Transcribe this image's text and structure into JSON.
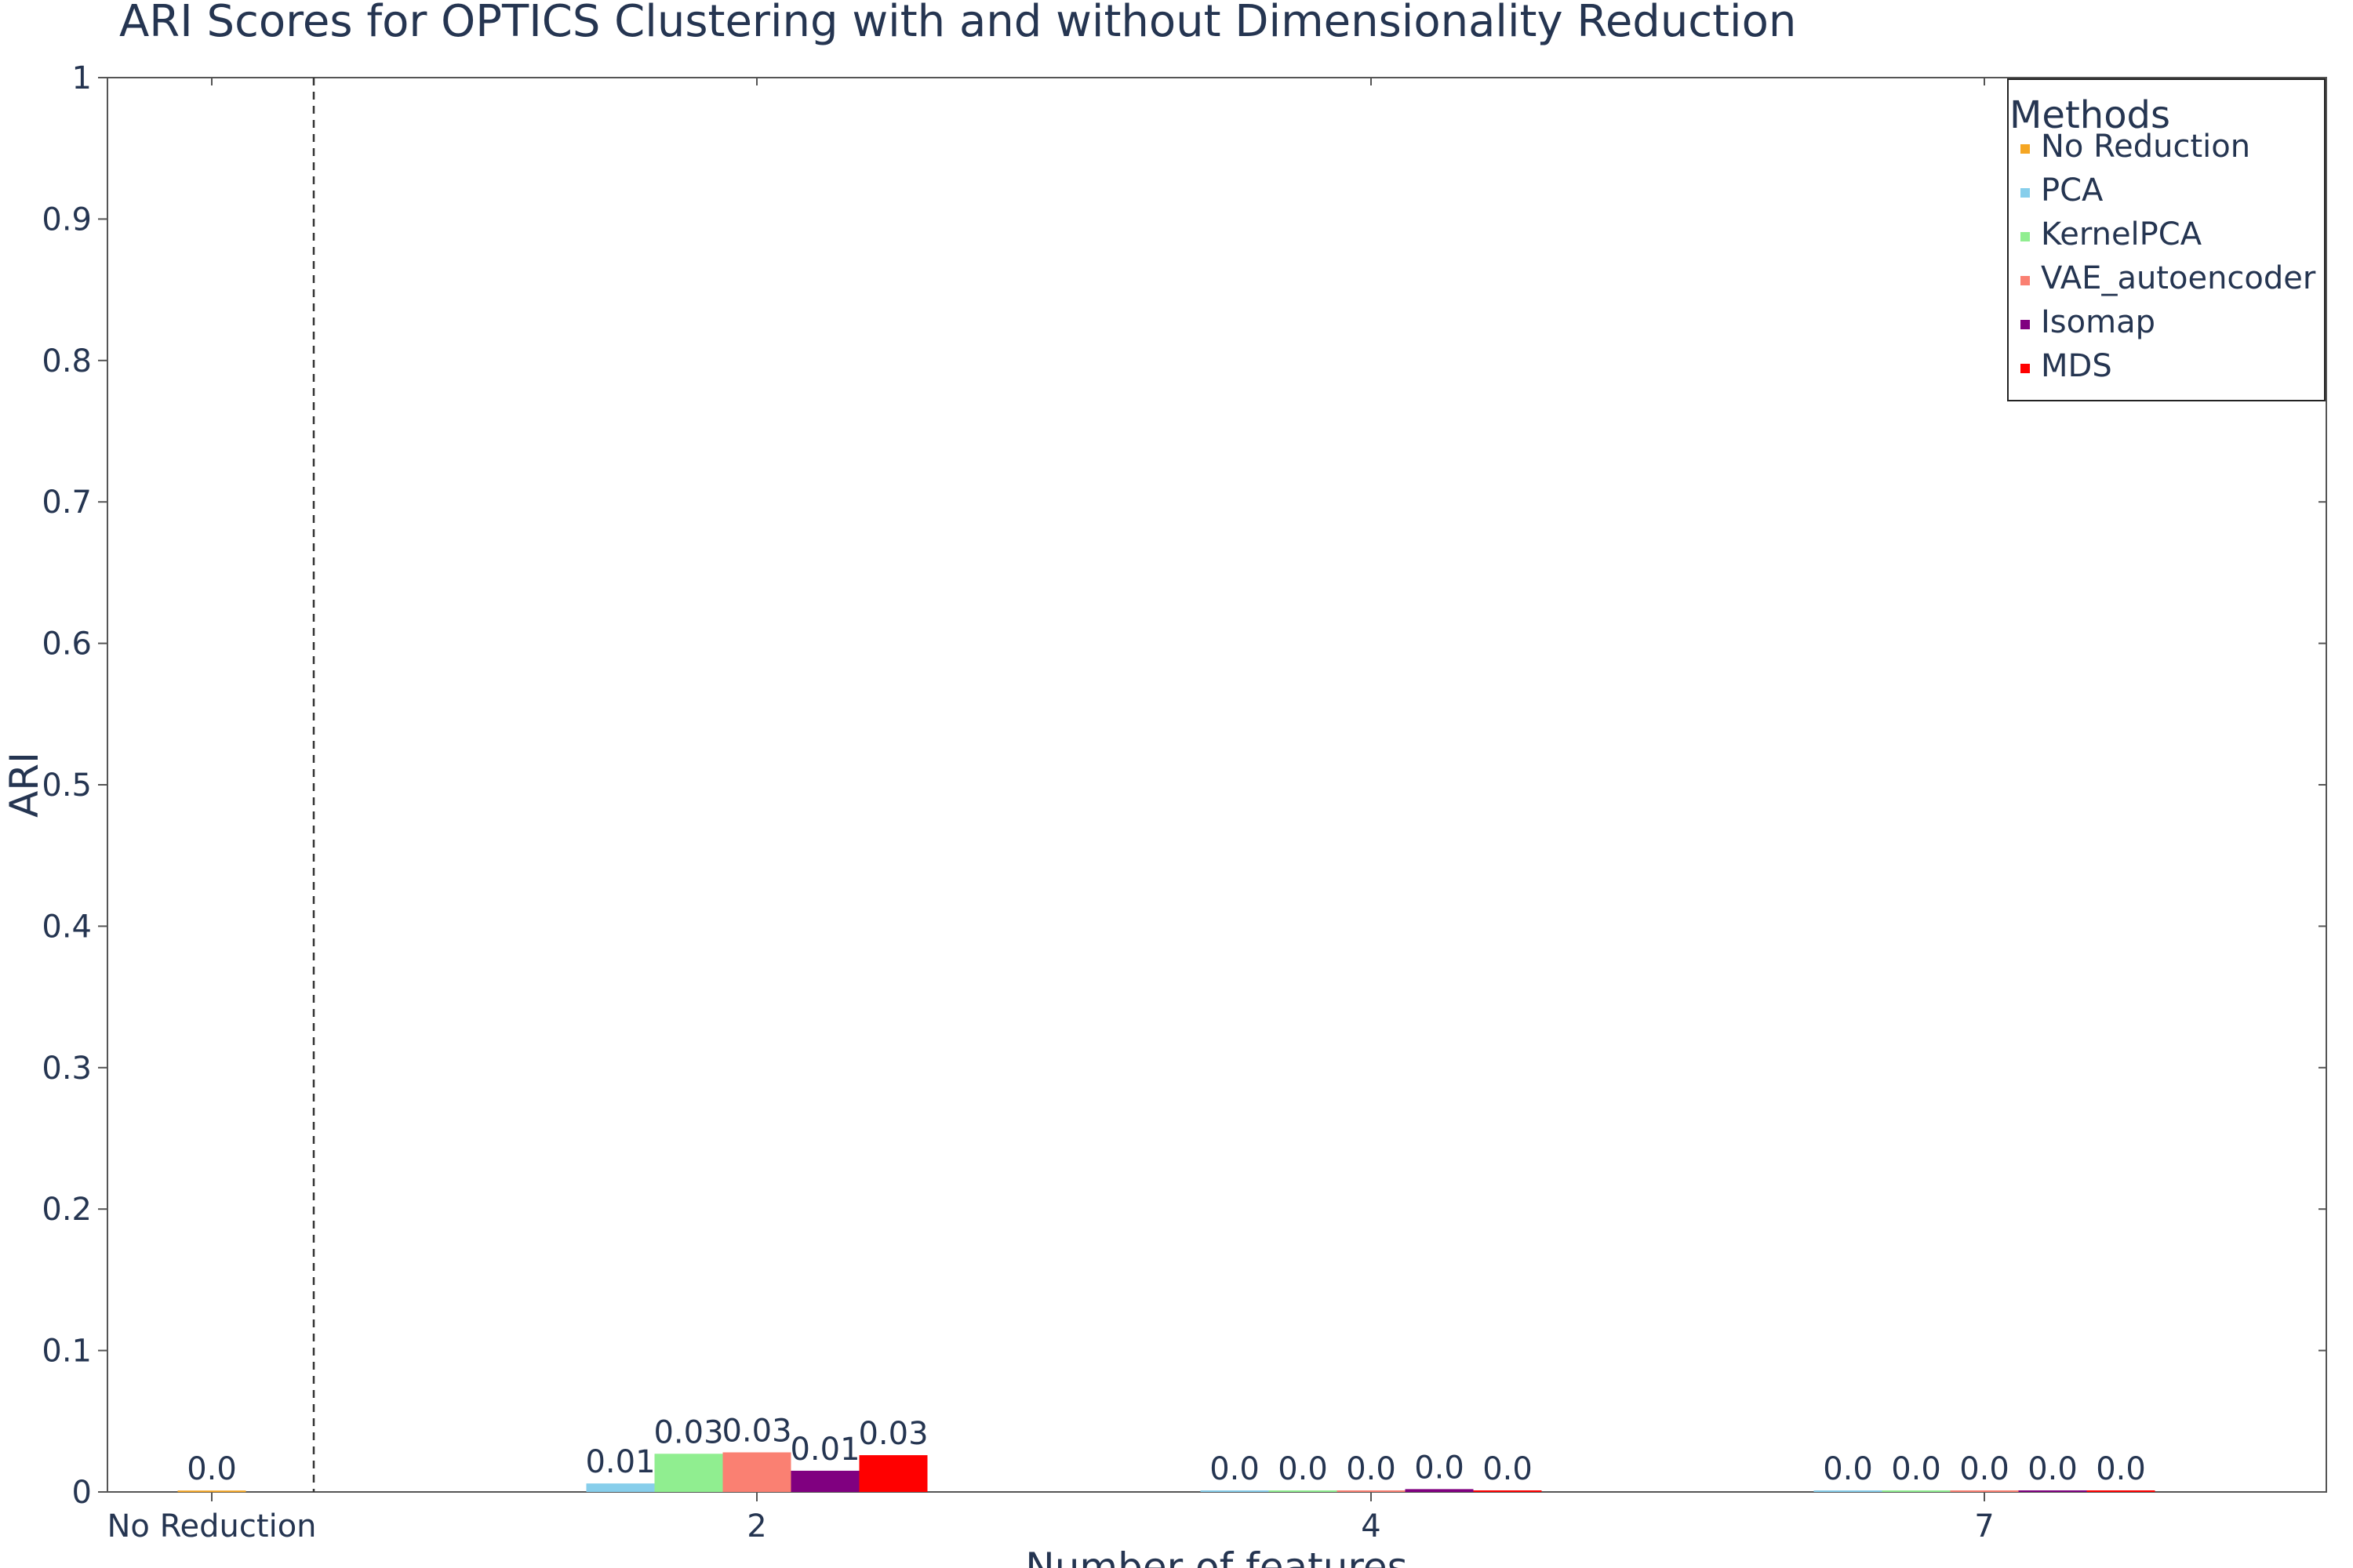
{
  "chart_data": {
    "type": "bar",
    "title": "ARI Scores for OPTICS Clustering with and without Dimensionality Reduction",
    "xlabel": "Number of features",
    "ylabel": "ARI",
    "ylim": [
      0,
      1
    ],
    "yticks": [
      "0",
      "0.1",
      "0.2",
      "0.3",
      "0.4",
      "0.5",
      "0.6",
      "0.7",
      "0.8",
      "0.9",
      "1"
    ],
    "categories": [
      "No Reduction",
      "2",
      "4",
      "7"
    ],
    "grid": false,
    "separator_after_first_category": true,
    "legend": {
      "title": "Methods",
      "placement": "top-right"
    },
    "series": [
      {
        "name": "No Reduction",
        "color": "#f5a623",
        "values": [
          0.001,
          null,
          null,
          null
        ],
        "labels": [
          "0.0",
          "",
          "",
          ""
        ]
      },
      {
        "name": "PCA",
        "color": "#87ceeb",
        "values": [
          null,
          0.006,
          0.001,
          0.001
        ],
        "labels": [
          "",
          "0.01",
          "0.0",
          "0.0"
        ]
      },
      {
        "name": "KernelPCA",
        "color": "#90ee90",
        "values": [
          null,
          0.027,
          0.0,
          0.0
        ],
        "labels": [
          "",
          "0.03",
          "0.0",
          "0.0"
        ]
      },
      {
        "name": "VAE_autoencoder",
        "color": "#fa8072",
        "values": [
          null,
          0.028,
          0.0,
          0.0
        ],
        "labels": [
          "",
          "0.03",
          "0.0",
          "0.0"
        ]
      },
      {
        "name": "Isomap",
        "color": "#800080",
        "values": [
          null,
          0.015,
          0.002,
          0.001
        ],
        "labels": [
          "",
          "0.01",
          "0.0",
          "0.0"
        ]
      },
      {
        "name": "MDS",
        "color": "#ff0000",
        "values": [
          null,
          0.026,
          0.0,
          0.0
        ],
        "labels": [
          "",
          "0.03",
          "0.0",
          "0.0"
        ]
      }
    ]
  }
}
